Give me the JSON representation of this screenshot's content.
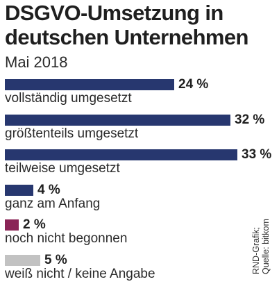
{
  "title": "DSGVO-Umsetzung in deutschen Unternehmen",
  "subtitle": "Mai 2018",
  "source": {
    "line1": "RND-Grafik;",
    "line2": "Quelle: bitkom"
  },
  "colors": {
    "bar_default": "#27376f",
    "bar_not_started": "#8a2456",
    "bar_unknown": "#c2c2c2"
  },
  "chart_data": {
    "type": "bar",
    "orientation": "horizontal",
    "title": "DSGVO-Umsetzung in deutschen Unternehmen",
    "subtitle": "Mai 2018",
    "unit": "%",
    "categories": [
      "vollständig umgesetzt",
      "größtenteils umgesetzt",
      "teilweise umgesetzt",
      "ganz am Anfang",
      "noch nicht begonnen",
      "weiß nicht / keine Angabe"
    ],
    "values": [
      24,
      32,
      33,
      4,
      2,
      5
    ],
    "value_labels": [
      "24 %",
      "32 %",
      "33 %",
      "4 %",
      "2 %",
      "5 %"
    ],
    "bar_colors": [
      "#27376f",
      "#27376f",
      "#27376f",
      "#27376f",
      "#8a2456",
      "#c2c2c2"
    ],
    "grid": false,
    "legend": "none"
  }
}
